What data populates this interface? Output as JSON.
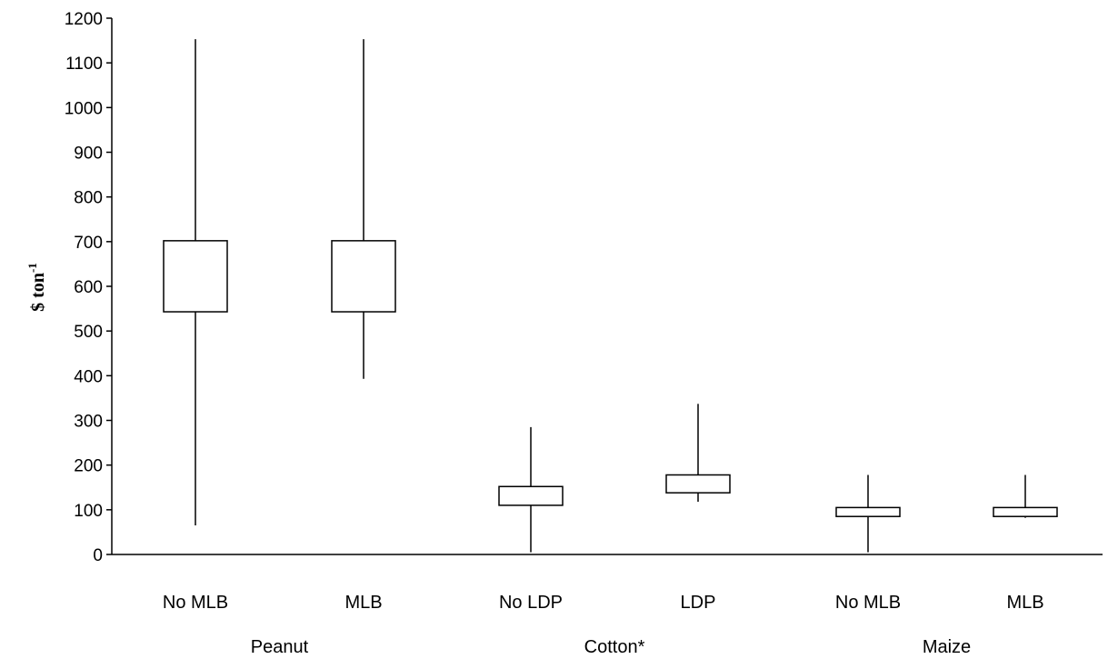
{
  "chart_data": {
    "type": "boxplot",
    "title": "",
    "xlabel": "",
    "ylabel": "$ ton",
    "ylabel_superscript": "-1",
    "ylim": [
      0,
      1200
    ],
    "yticks": [
      0,
      100,
      200,
      300,
      400,
      500,
      600,
      700,
      800,
      900,
      1000,
      1100,
      1200
    ],
    "grid": false,
    "categories": [
      "No MLB",
      "MLB",
      "No LDP",
      "LDP",
      "No MLB",
      "MLB"
    ],
    "groups": [
      {
        "label": "Peanut",
        "categories": [
          0,
          1
        ]
      },
      {
        "label": "Cotton*",
        "categories": [
          2,
          3
        ]
      },
      {
        "label": "Maize",
        "categories": [
          4,
          5
        ]
      }
    ],
    "boxes": [
      {
        "min": 65,
        "q1": 543,
        "q3": 702,
        "max": 1153
      },
      {
        "min": 393,
        "q1": 543,
        "q3": 702,
        "max": 1153
      },
      {
        "min": 5,
        "q1": 110,
        "q3": 152,
        "max": 285
      },
      {
        "min": 118,
        "q1": 138,
        "q3": 178,
        "max": 337
      },
      {
        "min": 5,
        "q1": 85,
        "q3": 105,
        "max": 178
      },
      {
        "min": 82,
        "q1": 85,
        "q3": 105,
        "max": 178
      }
    ]
  }
}
